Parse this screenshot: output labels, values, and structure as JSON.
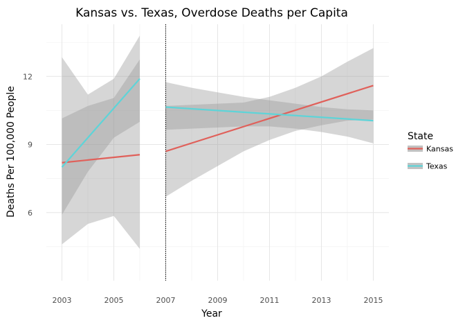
{
  "chart_data": {
    "type": "line",
    "title": "Kansas vs. Texas, Overdose Deaths per Capita",
    "xlabel": "Year",
    "ylabel": "Deaths Per 100,000 People",
    "xlim": [
      2002.4,
      2015.6
    ],
    "ylim": [
      3.0,
      14.3
    ],
    "x_ticks": [
      2003,
      2005,
      2007,
      2009,
      2011,
      2013,
      2015
    ],
    "y_ticks": [
      6,
      9,
      12
    ],
    "x_tick_labels": [
      "2003",
      "2005",
      "2007",
      "2009",
      "2011",
      "2013",
      "2015"
    ],
    "y_tick_labels": [
      "6",
      "9",
      "12"
    ],
    "grid": true,
    "vline_x": 2007,
    "legend": {
      "title": "State",
      "position": "right",
      "entries": [
        {
          "label": "Kansas",
          "color": "#E0605A"
        },
        {
          "label": "Texas",
          "color": "#5ED4D8"
        }
      ]
    },
    "series": [
      {
        "name": "Kansas",
        "color": "#E0605A",
        "segments": [
          {
            "x": [
              2003,
              2006
            ],
            "y": [
              8.2,
              8.55
            ],
            "band": {
              "x": [
                2003,
                2004,
                2005,
                2006
              ],
              "lower": [
                5.9,
                7.8,
                9.3,
                10.0
              ],
              "upper": [
                10.15,
                10.7,
                11.05,
                12.75
              ]
            }
          },
          {
            "x": [
              2007,
              2015
            ],
            "y": [
              8.7,
              11.6
            ],
            "band": {
              "x": [
                2007,
                2008,
                2009,
                2010,
                2011,
                2012,
                2013,
                2014,
                2015
              ],
              "lower": [
                6.7,
                7.4,
                8.05,
                8.7,
                9.2,
                9.6,
                9.85,
                10.05,
                10.1
              ],
              "upper": [
                10.7,
                10.75,
                10.8,
                10.85,
                11.1,
                11.5,
                12.0,
                12.65,
                13.25
              ]
            }
          }
        ]
      },
      {
        "name": "Texas",
        "color": "#5ED4D8",
        "segments": [
          {
            "x": [
              2003,
              2006
            ],
            "y": [
              8.0,
              11.9
            ],
            "band": {
              "x": [
                2003,
                2004,
                2005,
                2006
              ],
              "lower": [
                4.6,
                5.5,
                5.85,
                4.4
              ],
              "upper": [
                12.85,
                11.2,
                11.9,
                13.8
              ]
            }
          },
          {
            "x": [
              2007,
              2015
            ],
            "y": [
              10.65,
              10.05
            ],
            "band": {
              "x": [
                2007,
                2008,
                2009,
                2010,
                2011,
                2012,
                2013,
                2014,
                2015
              ],
              "lower": [
                9.65,
                9.7,
                9.75,
                9.8,
                9.8,
                9.7,
                9.55,
                9.35,
                9.05
              ],
              "upper": [
                11.75,
                11.5,
                11.3,
                11.1,
                10.95,
                10.8,
                10.65,
                10.55,
                10.5
              ]
            }
          }
        ]
      }
    ]
  }
}
